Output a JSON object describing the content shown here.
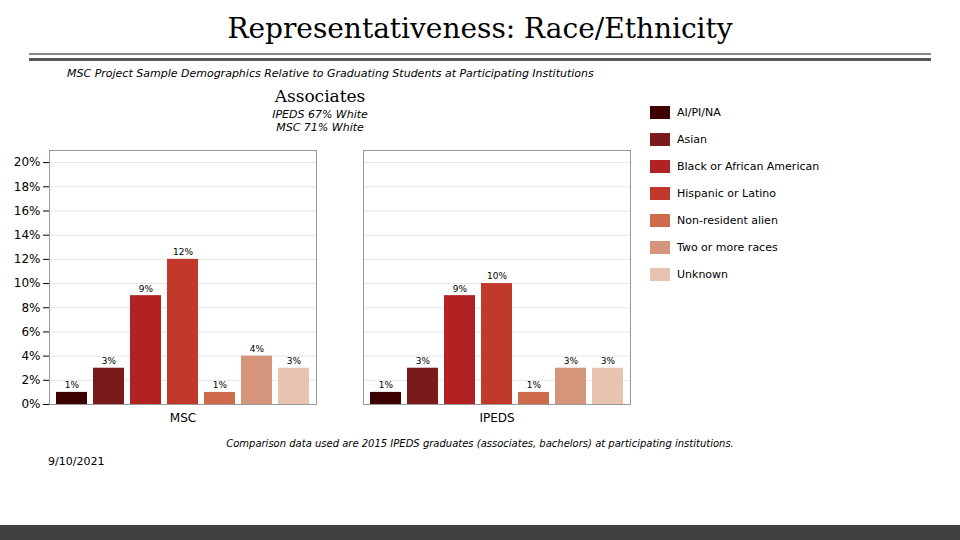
{
  "chart_data": {
    "type": "bar",
    "title": "Representativeness: Race/Ethnicity",
    "subtitle": "MSC Project Sample Demographics Relative to Graduating Students at Participating Institutions",
    "annotations": [
      "Associates",
      "IPEDS 67% White\nMSC 71% White",
      "Comparison data used are 2015 IPEDS graduates (associates, bachelors) at participating institutions.",
      "9/10/2021"
    ],
    "categories": [
      "MSC",
      "IPEDS"
    ],
    "series": [
      {
        "name": "AI/PI/NA",
        "color": "#3d0000",
        "values": [
          1,
          1
        ],
        "value_labels": [
          "1%",
          "1%"
        ]
      },
      {
        "name": "Asian",
        "color": "#7b1a1a",
        "values": [
          3,
          3
        ],
        "value_labels": [
          "3%",
          "3%"
        ]
      },
      {
        "name": "Black or African American",
        "color": "#b22222",
        "values": [
          9,
          9
        ],
        "value_labels": [
          "9%",
          "9%"
        ]
      },
      {
        "name": "Hispanic or Latino",
        "color": "#c0392b",
        "values": [
          12,
          10
        ],
        "value_labels": [
          "12%",
          "10%"
        ]
      },
      {
        "name": "Non-resident alien",
        "color": "#cd6b4b",
        "values": [
          1,
          1
        ],
        "value_labels": [
          "1%",
          "1%"
        ]
      },
      {
        "name": "Two or more races",
        "color": "#d4957a",
        "values": [
          4,
          3
        ],
        "value_labels": [
          "4%",
          "3%"
        ]
      },
      {
        "name": "Unknown",
        "color": "#e8c4b0",
        "values": [
          3,
          3
        ],
        "value_labels": [
          "3%",
          "3%"
        ]
      }
    ],
    "ylim": [
      0,
      21
    ],
    "yticks": [
      {
        "value": 0,
        "label": "0%"
      },
      {
        "value": 2,
        "label": "2%"
      },
      {
        "value": 4,
        "label": "4%"
      },
      {
        "value": 6,
        "label": "6%"
      },
      {
        "value": 8,
        "label": "8%"
      },
      {
        "value": 10,
        "label": "10%"
      },
      {
        "value": 12,
        "label": "12%"
      },
      {
        "value": 14,
        "label": "14%"
      },
      {
        "value": 16,
        "label": "16%"
      },
      {
        "value": 18,
        "label": "18%"
      },
      {
        "value": 20,
        "label": "20%"
      }
    ],
    "grid": true,
    "legend": "right",
    "data_labels": true
  }
}
